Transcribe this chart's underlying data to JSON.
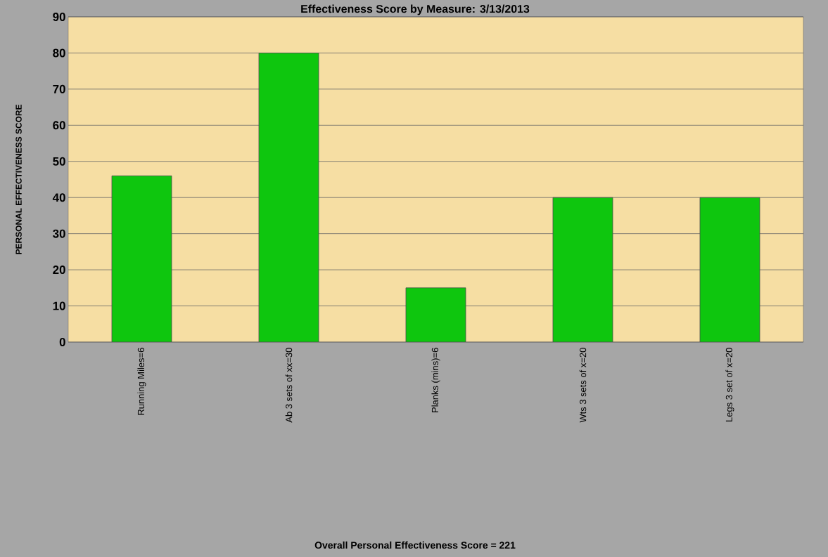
{
  "chart_data": {
    "type": "bar",
    "title": "Effectiveness Score by Measure: 3/13/2013",
    "annotations": [
      "Overall Personal Effectiveness Score = 221"
    ],
    "ylabel": "PERSONAL EFFECTIVENESS SCORE",
    "categories": [
      "Running Miles=6",
      "Ab 3 sets of xx=30",
      "Planks (mins)=6",
      "Wts 3 sets of x=20",
      "Legs 3 set of x=20"
    ],
    "values": [
      46,
      80,
      15,
      40,
      40
    ],
    "color": "#0ec60e",
    "ylim": [
      0,
      90
    ],
    "yticks": [
      0,
      10,
      20,
      30,
      40,
      50,
      60,
      70,
      80,
      90
    ],
    "grid": "y"
  }
}
